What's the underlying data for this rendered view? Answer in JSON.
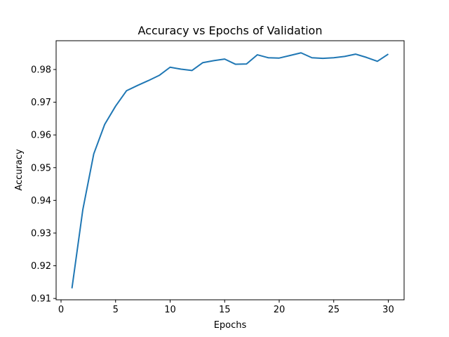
{
  "chart_data": {
    "type": "line",
    "title": "Accuracy vs Epochs of Validation",
    "xlabel": "Epochs",
    "ylabel": "Accuracy",
    "xlim": [
      -0.45,
      31.45
    ],
    "ylim": [
      0.9096,
      0.9888
    ],
    "xticks": [
      0,
      5,
      10,
      15,
      20,
      25,
      30
    ],
    "yticks": [
      0.91,
      0.92,
      0.93,
      0.94,
      0.95,
      0.96,
      0.97,
      0.98
    ],
    "grid": false,
    "line_color": "#1f77b4",
    "series": [
      {
        "x": [
          1,
          2,
          3,
          4,
          5,
          6,
          7,
          8,
          9,
          10,
          11,
          12,
          13,
          14,
          15,
          16,
          17,
          18,
          19,
          20,
          21,
          22,
          23,
          24,
          25,
          26,
          27,
          28,
          29,
          30
        ],
        "values": [
          0.9131,
          0.9372,
          0.9542,
          0.9632,
          0.9688,
          0.9735,
          0.9751,
          0.9766,
          0.9782,
          0.9807,
          0.9801,
          0.9797,
          0.9821,
          0.9827,
          0.9832,
          0.9816,
          0.9817,
          0.9845,
          0.9836,
          0.9835,
          0.9843,
          0.9851,
          0.9836,
          0.9834,
          0.9836,
          0.984,
          0.9847,
          0.9837,
          0.9825,
          0.9847
        ]
      }
    ]
  }
}
